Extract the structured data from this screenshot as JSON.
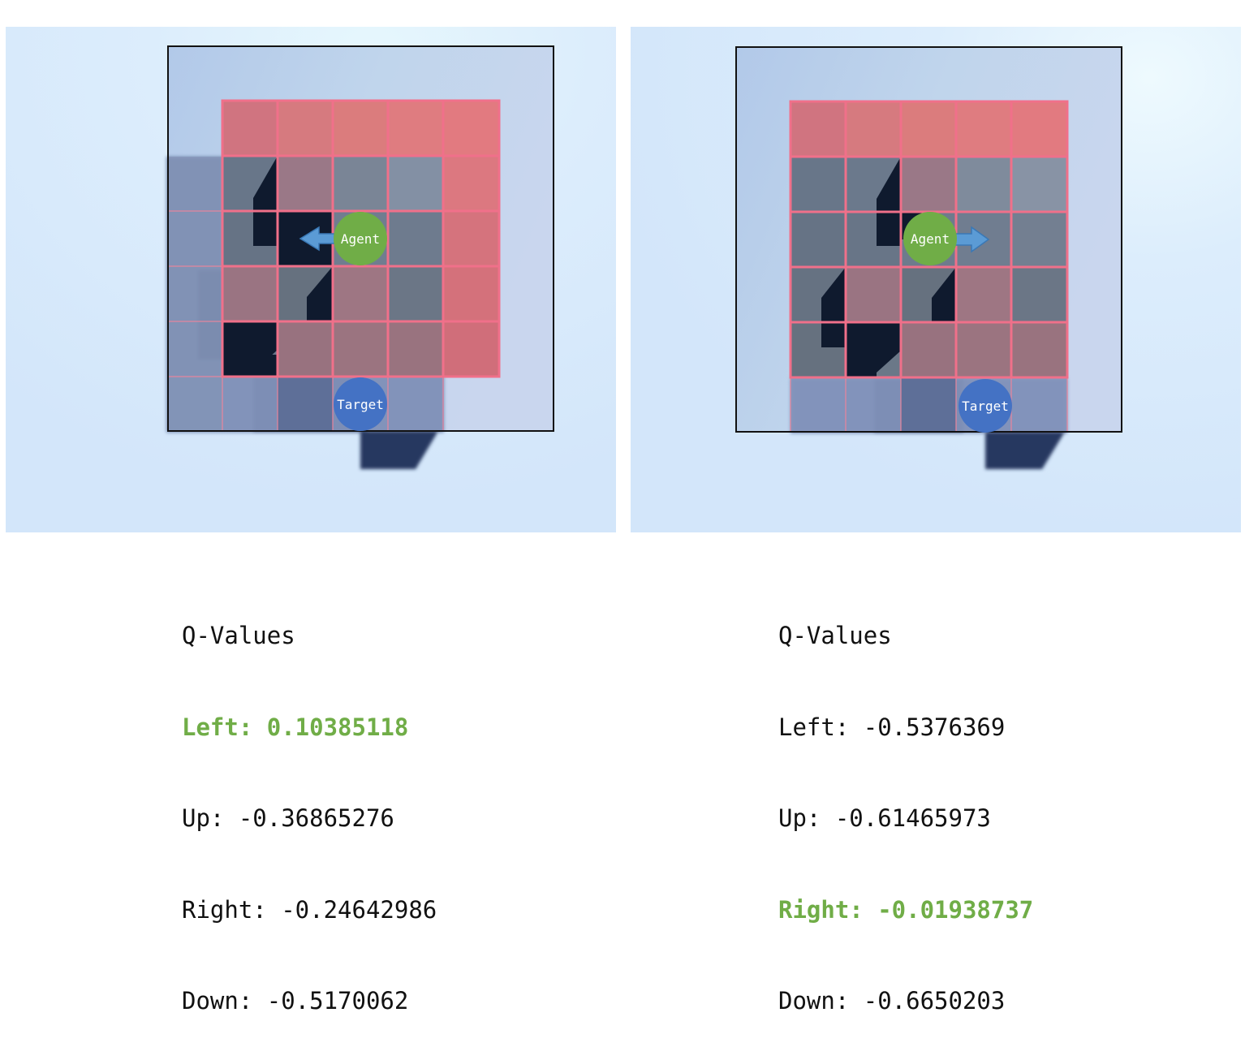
{
  "colors": {
    "best_action": "#70ad47",
    "agent": "#70ad47",
    "target": "#4472c4",
    "arrow": "#5b9bd5",
    "red_cell": "#e8707a",
    "grid_line": "#f0708a",
    "background": "#d6e8fb"
  },
  "panels": [
    {
      "agent_label": "Agent",
      "target_label": "Target",
      "arrow_direction": "left",
      "qvalues": {
        "title": "Q-Values",
        "actions": [
          {
            "label": "Left: 0.10385118",
            "best": true
          },
          {
            "label": "Up: -0.36865276",
            "best": false
          },
          {
            "label": "Right: -0.24642986",
            "best": false
          },
          {
            "label": "Down: -0.5170062",
            "best": false
          }
        ]
      }
    },
    {
      "agent_label": "Agent",
      "target_label": "Target",
      "arrow_direction": "right",
      "qvalues": {
        "title": "Q-Values",
        "actions": [
          {
            "label": "Left: -0.5376369",
            "best": false
          },
          {
            "label": "Up: -0.61465973",
            "best": false
          },
          {
            "label": "Right: -0.01938737",
            "best": true
          },
          {
            "label": "Down: -0.6650203",
            "best": false
          }
        ]
      }
    }
  ]
}
